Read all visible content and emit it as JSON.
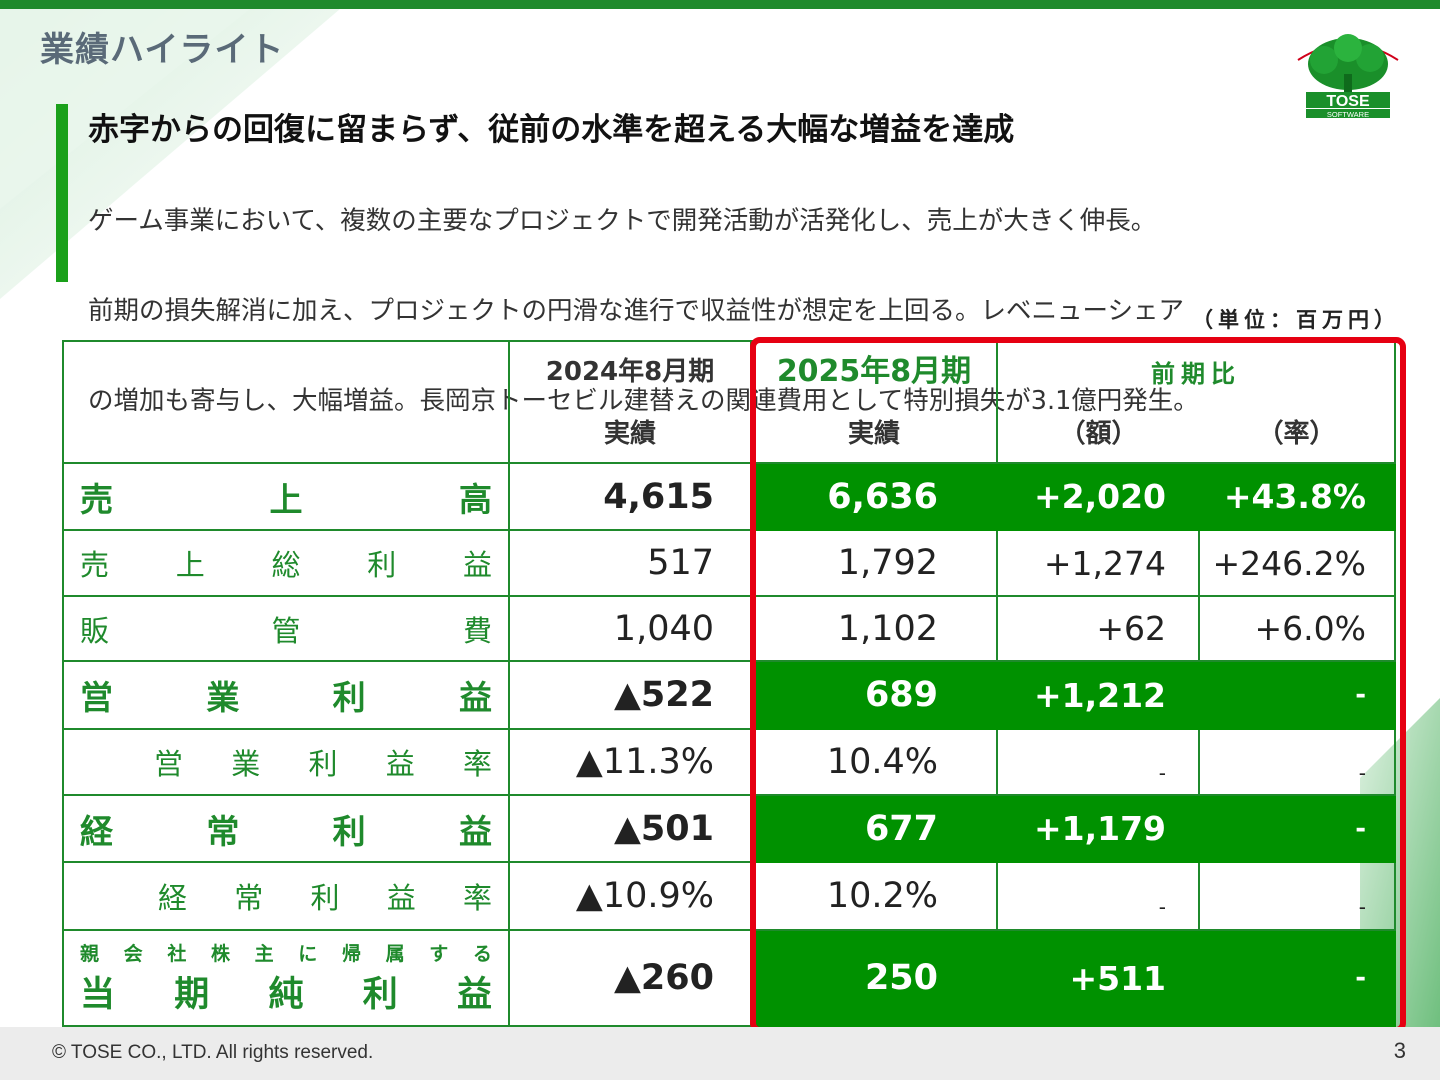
{
  "page": {
    "title": "業績ハイライト",
    "headline": "赤字からの回復に留まらず、従前の水準を超える大幅な増益を達成",
    "body_lines": [
      "ゲーム事業において、複数の主要なプロジェクトで開発活動が活発化し、売上が大きく伸長。",
      "前期の損失解消に加え、プロジェクトの円滑な進行で収益性が想定を上回る。レベニューシェア",
      "の増加も寄与し、大幅増益。長岡京トーセビル建替えの関連費用として特別損失が3.1億円発生。"
    ],
    "unit": "（単位：百万円）",
    "logo_text": "TOSE",
    "logo_subtext": "SOFTWARE",
    "page_number": "3",
    "copyright": "© TOSE CO., LTD. All rights reserved.",
    "accent_color": "#1f8a2c",
    "highlight_color": "#e60012"
  },
  "table": {
    "header": {
      "prev_period": "2024年8月期",
      "prev_sub": "実績",
      "cur_period": "2025年8月期",
      "cur_sub": "実績",
      "compare": "前期比",
      "compare_amount": "（額）",
      "compare_rate": "（率）"
    },
    "rows": [
      {
        "label": "売上高",
        "prev": "4,615",
        "cur": "6,636",
        "diff": "+2,020",
        "rate": "+43.8%"
      },
      {
        "label": "売上総利益",
        "prev": "517",
        "cur": "1,792",
        "diff": "+1,274",
        "rate": "+246.2%"
      },
      {
        "label": "販管費",
        "prev": "1,040",
        "cur": "1,102",
        "diff": "+62",
        "rate": "+6.0%"
      },
      {
        "label": "営業利益",
        "prev": "▲522",
        "cur": "689",
        "diff": "+1,212",
        "rate": "-"
      },
      {
        "label": "営業利益率",
        "prev": "▲11.3%",
        "cur": "10.4%",
        "diff": "-",
        "rate": "-"
      },
      {
        "label": "経常利益",
        "prev": "▲501",
        "cur": "677",
        "diff": "+1,179",
        "rate": "-"
      },
      {
        "label": "経常利益率",
        "prev": "▲10.9%",
        "cur": "10.2%",
        "diff": "-",
        "rate": "-"
      },
      {
        "label_small": "親会社株主に帰属する",
        "label": "当期純利益",
        "prev": "▲260",
        "cur": "250",
        "diff": "+511",
        "rate": "-"
      }
    ]
  }
}
